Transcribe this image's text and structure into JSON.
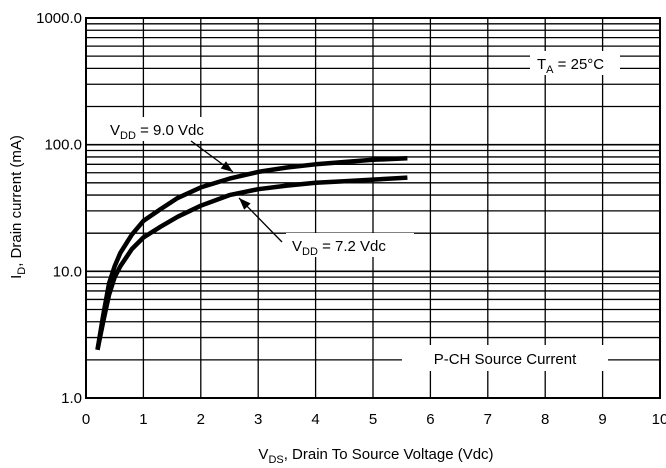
{
  "chart_data": {
    "type": "line",
    "title": "",
    "xlabel": {
      "main": "V",
      "sub": "DS",
      "rest": ", Drain To Source Voltage (Vdc)"
    },
    "ylabel": {
      "main": "I",
      "sub": "D",
      "rest": ", Drain current (mA)"
    },
    "xlim": [
      0,
      10
    ],
    "ylim": [
      1,
      1000
    ],
    "yscale": "log",
    "grid": true,
    "x_ticks": [
      "0",
      "1",
      "2",
      "3",
      "4",
      "5",
      "6",
      "7",
      "8",
      "9",
      "10"
    ],
    "y_ticks": [
      "1.0",
      "10.0",
      "100.0",
      "1000.0"
    ],
    "series": [
      {
        "name": "VDD = 9.0 Vdc",
        "x": [
          0.2,
          0.3,
          0.4,
          0.5,
          0.6,
          0.8,
          1.0,
          1.3,
          1.6,
          2.0,
          2.5,
          3.0,
          3.5,
          4.0,
          4.5,
          5.0,
          5.6
        ],
        "y": [
          2.4,
          4.5,
          8.0,
          11.0,
          14.0,
          19.5,
          25.0,
          31.0,
          38.0,
          46.0,
          54.0,
          61.0,
          66.0,
          70.0,
          73.0,
          76.0,
          78.0
        ]
      },
      {
        "name": "VDD = 7.2 Vdc",
        "x": [
          0.2,
          0.3,
          0.4,
          0.5,
          0.6,
          0.8,
          1.0,
          1.3,
          1.6,
          2.0,
          2.5,
          3.0,
          3.5,
          4.0,
          4.5,
          5.0,
          5.6
        ],
        "y": [
          2.4,
          4.0,
          6.5,
          9.0,
          11.0,
          15.0,
          18.5,
          22.5,
          27.0,
          33.0,
          40.0,
          44.5,
          47.5,
          50.0,
          51.5,
          53.0,
          55.0
        ]
      }
    ],
    "annotations": {
      "vdd9": {
        "main": "V",
        "sub": "DD",
        "rest": " = 9.0 Vdc"
      },
      "vdd72": {
        "main": "V",
        "sub": "DD",
        "rest": " = 7.2 Vdc"
      },
      "ta": {
        "main": "T",
        "sub": "A",
        "rest": " = 25°C"
      },
      "pch": "P-CH Source Current"
    }
  }
}
